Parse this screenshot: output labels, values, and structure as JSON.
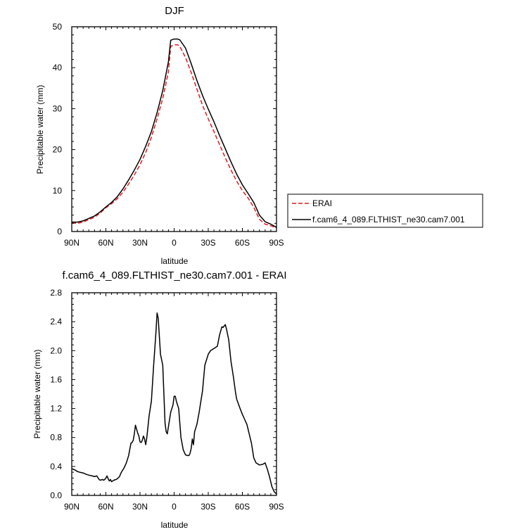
{
  "chart_data": [
    {
      "type": "line",
      "title": "DJF",
      "xlabel": "latitude",
      "ylabel": "Precipitable water (mm)",
      "x_unit": "degrees latitude (positive = N, negative = S)",
      "xlim": [
        90,
        -90
      ],
      "ylim": [
        0,
        50
      ],
      "x_ticks": [
        90,
        60,
        30,
        0,
        -30,
        -60,
        -90
      ],
      "x_tick_labels": [
        "90N",
        "60N",
        "30N",
        "0",
        "30S",
        "60S",
        "90S"
      ],
      "y_ticks": [
        0,
        10,
        20,
        30,
        40,
        50
      ],
      "y_tick_labels": [
        "0",
        "10",
        "20",
        "30",
        "40",
        "50"
      ],
      "grid": false,
      "legend_position": "right",
      "series": [
        {
          "name": "ERAI",
          "color": "#e41a1c",
          "dash": "dashed",
          "x": [
            90,
            85,
            80,
            75,
            70,
            65,
            60,
            55,
            50,
            45,
            40,
            35,
            30,
            25,
            20,
            15,
            10,
            5,
            3,
            0,
            -3,
            -5,
            -10,
            -15,
            -20,
            -25,
            -30,
            -35,
            -40,
            -45,
            -50,
            -55,
            -60,
            -65,
            -70,
            -75,
            -80,
            -85,
            -90
          ],
          "y": [
            2.1,
            2.0,
            2.3,
            2.9,
            3.5,
            4.5,
            5.8,
            6.8,
            8.0,
            9.6,
            11.6,
            13.8,
            16.3,
            19.3,
            23.0,
            27.5,
            32.5,
            39.0,
            45.2,
            45.6,
            45.6,
            45.2,
            42.5,
            38.8,
            34.8,
            30.8,
            27.5,
            24.4,
            21.2,
            18.0,
            15.0,
            12.3,
            10.0,
            8.2,
            5.9,
            3.0,
            1.8,
            1.4,
            0.9
          ]
        },
        {
          "name": "f.cam6_4_089.FLTHIST_ne30.cam7.001",
          "color": "#000000",
          "dash": "solid",
          "x": [
            90,
            85,
            80,
            75,
            70,
            65,
            60,
            55,
            50,
            45,
            40,
            35,
            30,
            25,
            20,
            15,
            10,
            5,
            3,
            0,
            -3,
            -5,
            -10,
            -15,
            -20,
            -25,
            -30,
            -35,
            -40,
            -45,
            -50,
            -55,
            -60,
            -65,
            -70,
            -75,
            -80,
            -85,
            -90
          ],
          "y": [
            2.3,
            2.3,
            2.6,
            3.2,
            3.8,
            4.8,
            6.0,
            7.1,
            8.5,
            10.4,
            12.6,
            15.0,
            17.6,
            20.8,
            24.4,
            29.0,
            34.4,
            41.5,
            46.7,
            47.0,
            47.0,
            46.8,
            44.8,
            41.0,
            36.9,
            33.2,
            29.9,
            26.8,
            23.4,
            20.2,
            17.0,
            14.0,
            11.4,
            9.3,
            7.1,
            4.0,
            2.4,
            1.8,
            1.0
          ]
        }
      ]
    },
    {
      "type": "line",
      "title": "f.cam6_4_089.FLTHIST_ne30.cam7.001 - ERAI",
      "xlabel": "latitude",
      "ylabel": "Precipitable water (mm)",
      "x_unit": "degrees latitude (positive = N, negative = S)",
      "xlim": [
        90,
        -90
      ],
      "ylim": [
        0,
        2.8
      ],
      "x_ticks": [
        90,
        60,
        30,
        0,
        -30,
        -60,
        -90
      ],
      "x_tick_labels": [
        "90N",
        "60N",
        "30N",
        "0",
        "30S",
        "60S",
        "90S"
      ],
      "y_ticks": [
        0,
        0.4,
        0.8,
        1.2,
        1.6,
        2.0,
        2.4,
        2.8
      ],
      "y_tick_labels": [
        "0.0",
        "0.4",
        "0.8",
        "1.2",
        "1.6",
        "2.0",
        "2.4",
        "2.8"
      ],
      "grid": false,
      "series": [
        {
          "color": "#000000",
          "dash": "solid",
          "x": [
            90,
            87,
            85,
            83,
            80,
            77,
            75,
            72,
            70,
            68,
            66,
            65,
            63,
            62,
            61,
            60,
            59,
            58,
            57,
            56,
            55,
            53,
            51,
            50,
            48,
            47,
            46,
            44,
            42,
            41,
            40,
            38,
            37,
            36,
            35,
            34,
            32,
            31,
            30,
            29,
            28,
            27,
            26,
            25,
            24,
            22,
            20,
            18,
            16,
            15,
            14,
            13,
            12,
            10,
            9,
            8,
            7,
            6,
            5,
            4,
            3,
            2,
            1,
            0,
            -1,
            -2,
            -3,
            -4,
            -5,
            -6,
            -8,
            -10,
            -12,
            -13,
            -14,
            -15,
            -16,
            -17,
            -18,
            -20,
            -22,
            -25,
            -27,
            -30,
            -32,
            -35,
            -38,
            -40,
            -42,
            -43,
            -45,
            -46,
            -48,
            -50,
            -52,
            -54,
            -55,
            -58,
            -60,
            -62,
            -64,
            -66,
            -68,
            -70,
            -72,
            -75,
            -78,
            -80,
            -82,
            -84,
            -86,
            -88,
            -90
          ],
          "y": [
            0.37,
            0.35,
            0.33,
            0.32,
            0.31,
            0.29,
            0.28,
            0.27,
            0.26,
            0.27,
            0.22,
            0.21,
            0.22,
            0.21,
            0.22,
            0.24,
            0.27,
            0.23,
            0.2,
            0.22,
            0.19,
            0.21,
            0.22,
            0.23,
            0.26,
            0.3,
            0.33,
            0.38,
            0.45,
            0.5,
            0.55,
            0.72,
            0.73,
            0.76,
            0.85,
            0.97,
            0.86,
            0.82,
            0.74,
            0.73,
            0.76,
            0.82,
            0.78,
            0.7,
            0.8,
            1.1,
            1.3,
            1.8,
            2.25,
            2.52,
            2.45,
            2.2,
            1.95,
            1.8,
            1.4,
            1.0,
            0.88,
            0.85,
            0.95,
            1.05,
            1.15,
            1.2,
            1.25,
            1.37,
            1.37,
            1.3,
            1.25,
            1.2,
            1.0,
            0.8,
            0.63,
            0.56,
            0.55,
            0.55,
            0.58,
            0.65,
            0.78,
            0.7,
            0.88,
            0.98,
            1.15,
            1.45,
            1.8,
            1.95,
            2.0,
            2.03,
            2.06,
            2.22,
            2.33,
            2.32,
            2.36,
            2.3,
            2.15,
            1.85,
            1.65,
            1.42,
            1.33,
            1.2,
            1.12,
            1.05,
            0.98,
            0.85,
            0.72,
            0.52,
            0.45,
            0.42,
            0.43,
            0.45,
            0.36,
            0.25,
            0.12,
            0.05,
            0.02
          ]
        }
      ]
    }
  ]
}
